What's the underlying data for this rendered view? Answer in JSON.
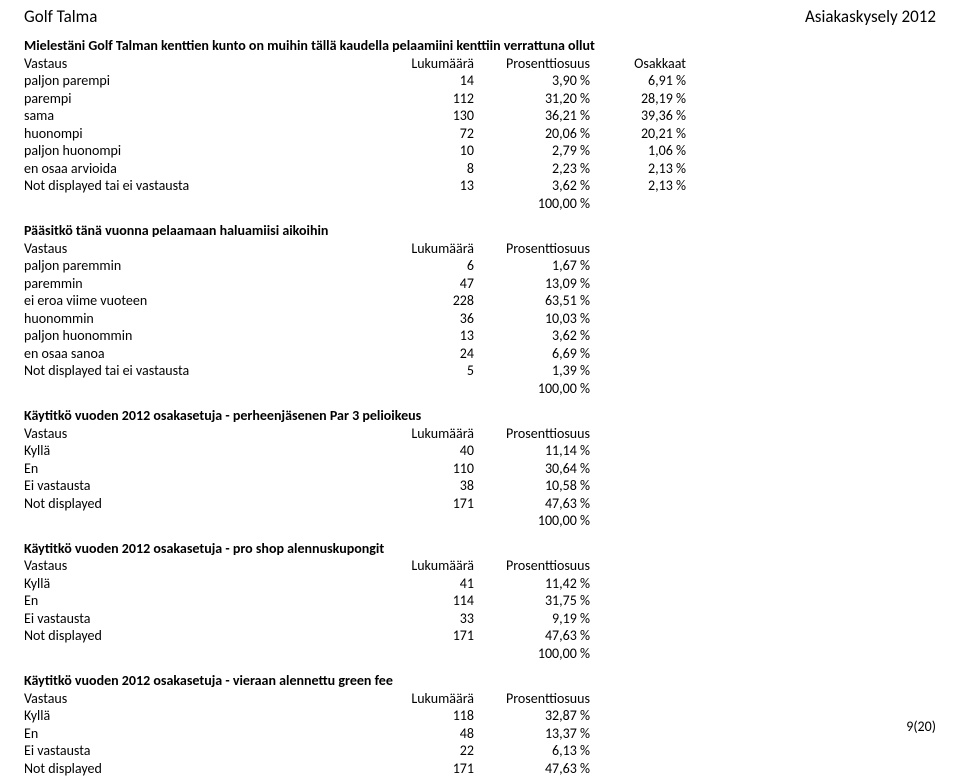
{
  "header": {
    "left": "Golf Talma",
    "right": "Asiakaskysely 2012"
  },
  "labels": {
    "vastaus": "Vastaus",
    "lukumaara": "Lukumäärä",
    "prosenttiosuus": "Prosenttiosuus",
    "osakkaat": "Osakkaat",
    "total_pct": "100,00 %"
  },
  "sections": [
    {
      "question": "Mielestäni Golf Talman kenttien kunto on muihin tällä kaudella pelaamiini kenttiin verrattuna ollut",
      "has_extra_col": true,
      "rows": [
        {
          "label": "paljon parempi",
          "count": "14",
          "pct": "3,90 %",
          "extra": "6,91 %"
        },
        {
          "label": "parempi",
          "count": "112",
          "pct": "31,20 %",
          "extra": "28,19 %"
        },
        {
          "label": "sama",
          "count": "130",
          "pct": "36,21 %",
          "extra": "39,36 %"
        },
        {
          "label": "huonompi",
          "count": "72",
          "pct": "20,06 %",
          "extra": "20,21 %"
        },
        {
          "label": "paljon huonompi",
          "count": "10",
          "pct": "2,79 %",
          "extra": "1,06 %"
        },
        {
          "label": "en osaa arvioida",
          "count": "8",
          "pct": "2,23 %",
          "extra": "2,13 %"
        },
        {
          "label": "Not displayed tai ei vastausta",
          "count": "13",
          "pct": "3,62 %",
          "extra": "2,13 %"
        }
      ]
    },
    {
      "question": "Pääsitkö tänä vuonna pelaamaan haluamiisi aikoihin",
      "has_extra_col": false,
      "rows": [
        {
          "label": "paljon paremmin",
          "count": "6",
          "pct": "1,67 %"
        },
        {
          "label": "paremmin",
          "count": "47",
          "pct": "13,09 %"
        },
        {
          "label": "ei eroa viime vuoteen",
          "count": "228",
          "pct": "63,51 %"
        },
        {
          "label": "huonommin",
          "count": "36",
          "pct": "10,03 %"
        },
        {
          "label": "paljon huonommin",
          "count": "13",
          "pct": "3,62 %"
        },
        {
          "label": "en osaa sanoa",
          "count": "24",
          "pct": "6,69 %"
        },
        {
          "label": "Not displayed tai ei vastausta",
          "count": "5",
          "pct": "1,39 %"
        }
      ]
    },
    {
      "question": "Käytitkö vuoden 2012 osakasetuja - perheenjäsenen Par 3 pelioikeus",
      "has_extra_col": false,
      "rows": [
        {
          "label": "Kyllä",
          "count": "40",
          "pct": "11,14 %"
        },
        {
          "label": "En",
          "count": "110",
          "pct": "30,64 %"
        },
        {
          "label": "Ei vastausta",
          "count": "38",
          "pct": "10,58 %"
        },
        {
          "label": "Not displayed",
          "count": "171",
          "pct": "47,63 %"
        }
      ]
    },
    {
      "question": "Käytitkö vuoden 2012 osakasetuja - pro shop alennuskupongit",
      "has_extra_col": false,
      "rows": [
        {
          "label": "Kyllä",
          "count": "41",
          "pct": "11,42 %"
        },
        {
          "label": "En",
          "count": "114",
          "pct": "31,75 %"
        },
        {
          "label": "Ei vastausta",
          "count": "33",
          "pct": "9,19 %"
        },
        {
          "label": "Not displayed",
          "count": "171",
          "pct": "47,63 %"
        }
      ]
    },
    {
      "question": "Käytitkö vuoden 2012 osakasetuja - vieraan alennettu green fee",
      "has_extra_col": false,
      "no_total": true,
      "rows": [
        {
          "label": "Kyllä",
          "count": "118",
          "pct": "32,87 %"
        },
        {
          "label": "En",
          "count": "48",
          "pct": "13,37 %"
        },
        {
          "label": "Ei vastausta",
          "count": "22",
          "pct": "6,13 %"
        },
        {
          "label": "Not displayed",
          "count": "171",
          "pct": "47,63 %"
        }
      ]
    }
  ],
  "footer": "9(20)"
}
